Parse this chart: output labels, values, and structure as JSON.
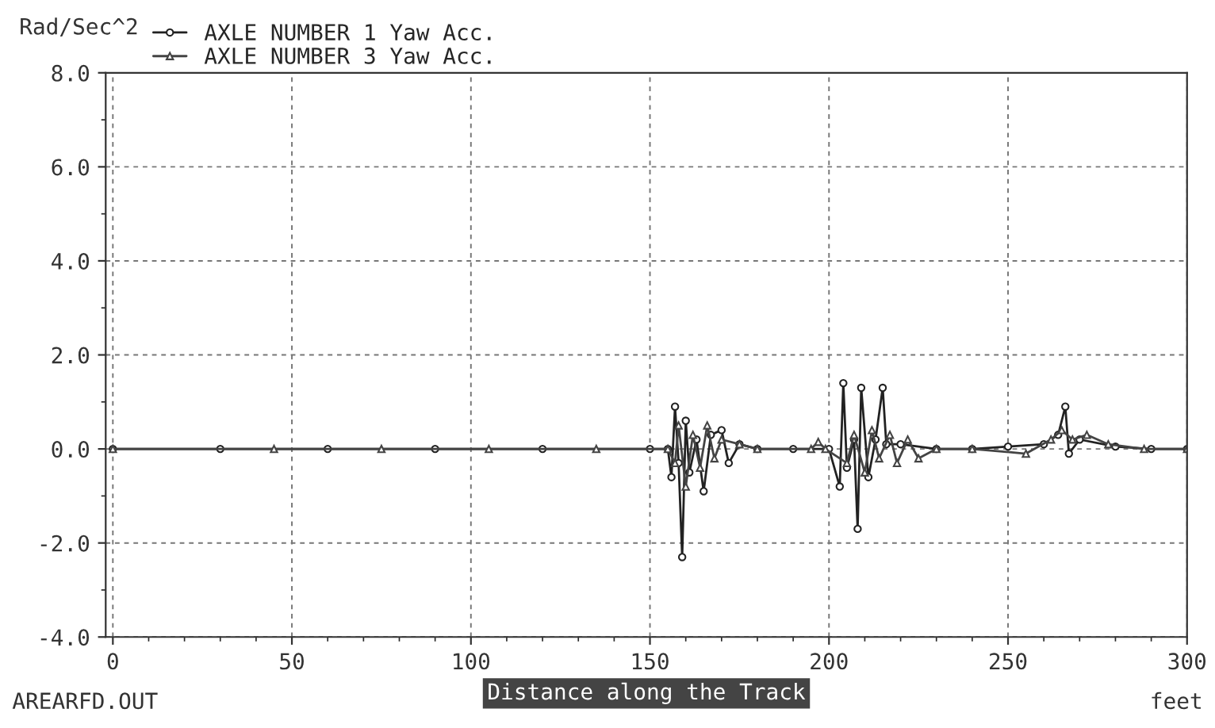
{
  "chart_data": {
    "type": "line",
    "ylabel": "Rad/Sec^2",
    "xlabel": "Distance along the Track",
    "annotations": [
      "AREARFD.OUT",
      "feet"
    ],
    "xlim": [
      -2,
      300
    ],
    "xticks": [
      0,
      50,
      100,
      150,
      200,
      250,
      300
    ],
    "ylim": [
      -4,
      8
    ],
    "yticks": [
      {
        "value": -4,
        "label": "-4.0"
      },
      {
        "value": -2,
        "label": "-2.0"
      },
      {
        "value": 0,
        "label": "0.0"
      },
      {
        "value": 2,
        "label": "2.0"
      },
      {
        "value": 4,
        "label": "4.0"
      },
      {
        "value": 6,
        "label": "6.0"
      },
      {
        "value": 8,
        "label": "8.0"
      }
    ],
    "grid": true,
    "legend": "top left",
    "series": [
      {
        "name": "AXLE NUMBER 1 Yaw Acc.",
        "color": "#222222",
        "marker": "circle",
        "x": [
          0,
          30,
          60,
          90,
          120,
          150,
          155,
          156,
          157,
          158,
          159,
          160,
          161,
          163,
          165,
          167,
          170,
          172,
          175,
          180,
          190,
          200,
          203,
          204,
          205,
          207,
          208,
          209,
          211,
          213,
          215,
          216,
          220,
          230,
          240,
          250,
          260,
          264,
          266,
          267,
          270,
          280,
          290,
          300
        ],
        "values": [
          0,
          0,
          0,
          0,
          0,
          0,
          0,
          -0.6,
          0.9,
          -0.3,
          -2.3,
          0.6,
          -0.5,
          0.2,
          -0.9,
          0.3,
          0.4,
          -0.3,
          0.1,
          0,
          0,
          0,
          -0.8,
          1.4,
          -0.4,
          0.2,
          -1.7,
          1.3,
          -0.6,
          0.2,
          1.3,
          0.1,
          0.1,
          0,
          0,
          0.05,
          0.1,
          0.3,
          0.9,
          -0.1,
          0.2,
          0.05,
          0,
          0
        ]
      },
      {
        "name": "AXLE NUMBER 3 Yaw Acc.",
        "color": "#444444",
        "marker": "triangle",
        "x": [
          0,
          45,
          75,
          105,
          135,
          155,
          157,
          158,
          160,
          162,
          164,
          166,
          168,
          170,
          175,
          180,
          195,
          197,
          199,
          205,
          207,
          210,
          212,
          214,
          217,
          219,
          222,
          225,
          230,
          240,
          255,
          262,
          265,
          268,
          272,
          278,
          288,
          300
        ],
        "values": [
          0,
          0,
          0,
          0,
          0,
          0,
          -0.3,
          0.5,
          -0.8,
          0.3,
          -0.4,
          0.5,
          -0.2,
          0.2,
          0.1,
          0,
          0,
          0.15,
          0,
          -0.3,
          0.3,
          -0.5,
          0.4,
          -0.2,
          0.3,
          -0.3,
          0.2,
          -0.2,
          0,
          0,
          -0.1,
          0.2,
          0.4,
          0.2,
          0.3,
          0.1,
          0,
          0
        ]
      }
    ]
  }
}
